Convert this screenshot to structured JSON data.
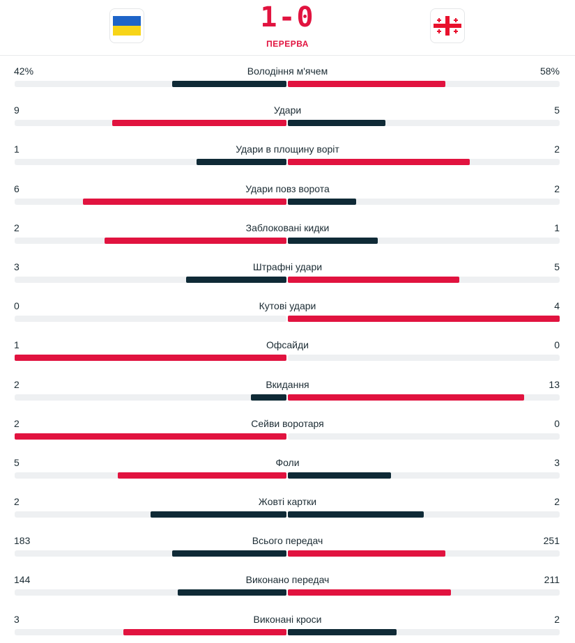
{
  "match": {
    "score": "1-0",
    "status": "ПЕРЕРВА"
  },
  "colors": {
    "leader": "#e1133f",
    "trailer": "#0f2a36",
    "track": "#eef0f2"
  },
  "teams": {
    "home": {
      "flag_icon": "ukraine-flag-icon"
    },
    "away": {
      "flag_icon": "georgia-flag-icon"
    }
  },
  "stats": [
    {
      "label": "Володіння м'ячем",
      "home": "42%",
      "away": "58%",
      "home_share": 0.42,
      "away_share": 0.58
    },
    {
      "label": "Удари",
      "home": "9",
      "away": "5",
      "home_share": 0.64,
      "away_share": 0.36
    },
    {
      "label": "Удари в площину воріт",
      "home": "1",
      "away": "2",
      "home_share": 0.33,
      "away_share": 0.67
    },
    {
      "label": "Удари повз ворота",
      "home": "6",
      "away": "2",
      "home_share": 0.75,
      "away_share": 0.25
    },
    {
      "label": "Заблоковані кидки",
      "home": "2",
      "away": "1",
      "home_share": 0.67,
      "away_share": 0.33
    },
    {
      "label": "Штрафні удари",
      "home": "3",
      "away": "5",
      "home_share": 0.37,
      "away_share": 0.63
    },
    {
      "label": "Кутові удари",
      "home": "0",
      "away": "4",
      "home_share": 0,
      "away_share": 1
    },
    {
      "label": "Офсайди",
      "home": "1",
      "away": "0",
      "home_share": 1,
      "away_share": 0
    },
    {
      "label": "Вкидання",
      "home": "2",
      "away": "13",
      "home_share": 0.13,
      "away_share": 0.87
    },
    {
      "label": "Сейви воротаря",
      "home": "2",
      "away": "0",
      "home_share": 1,
      "away_share": 0
    },
    {
      "label": "Фоли",
      "home": "5",
      "away": "3",
      "home_share": 0.62,
      "away_share": 0.38
    },
    {
      "label": "Жовті картки",
      "home": "2",
      "away": "2",
      "home_share": 0.5,
      "away_share": 0.5
    },
    {
      "label": "Всього передач",
      "home": "183",
      "away": "251",
      "home_share": 0.42,
      "away_share": 0.58
    },
    {
      "label": "Виконано передач",
      "home": "144",
      "away": "211",
      "home_share": 0.4,
      "away_share": 0.6
    },
    {
      "label": "Виконані кроси",
      "home": "3",
      "away": "2",
      "home_share": 0.6,
      "away_share": 0.4
    }
  ]
}
